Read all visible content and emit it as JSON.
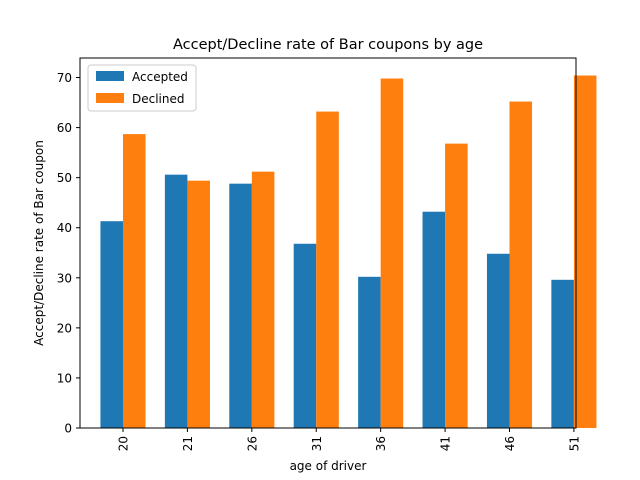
{
  "chart_data": {
    "type": "bar",
    "title": "Accept/Decline rate of Bar coupons by age",
    "xlabel": "age of driver",
    "ylabel": "Accept/Decline rate of Bar coupon",
    "categories": [
      "20",
      "21",
      "26",
      "31",
      "36",
      "41",
      "46",
      "51"
    ],
    "series": [
      {
        "name": "Accepted",
        "color": "#1f77b4",
        "values": [
          41.3,
          50.6,
          48.8,
          36.8,
          30.2,
          43.2,
          34.8,
          29.6
        ]
      },
      {
        "name": "Declined",
        "color": "#ff7f0e",
        "values": [
          58.7,
          49.4,
          51.2,
          63.2,
          69.8,
          56.8,
          65.2,
          70.4
        ]
      }
    ],
    "ylim": [
      0,
      73.9
    ],
    "yticks": [
      0,
      10,
      20,
      30,
      40,
      50,
      60,
      70
    ],
    "legend_position": "top-left",
    "grid": false
  }
}
